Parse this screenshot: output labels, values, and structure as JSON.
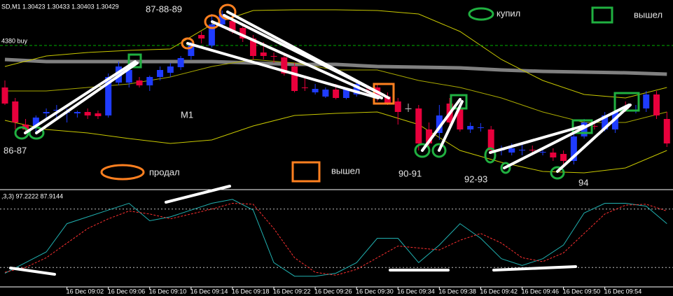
{
  "chart_data": [
    {
      "type": "candlestick",
      "title": "SD,M1  1.30423 1.30433 1.30403 1.30429",
      "categories": [
        null,
        null,
        null,
        null,
        null,
        null,
        "16 Dec 09:02",
        null,
        null,
        null,
        "16 Dec 09:06",
        null,
        null,
        null,
        "16 Dec 09:10",
        null,
        null,
        null,
        "16 Dec 09:14",
        null,
        null,
        null,
        "16 Dec 09:18",
        null,
        null,
        null,
        "16 Dec 09:22",
        null,
        null,
        null,
        "16 Dec 09:26",
        null,
        null,
        null,
        "16 Dec 09:30",
        null,
        null,
        null,
        "16 Dec 09:34",
        null,
        null,
        null,
        "16 Dec 09:38",
        null,
        null,
        null,
        "16 Dec 09:42",
        null,
        null,
        null,
        "16 Dec 09:46",
        null,
        null,
        null,
        "16 Dec 09:50",
        null,
        null,
        null,
        "16 Dec 09:54",
        null,
        null,
        null,
        null,
        null,
        null
      ],
      "open": [
        1.3032,
        1.303,
        1.30267,
        1.30265,
        1.30283,
        1.30287,
        1.30284,
        1.30283,
        1.30285,
        1.30283,
        1.3028,
        1.30327,
        1.30327,
        1.3033,
        1.30323,
        1.30335,
        1.30341,
        1.30349,
        1.30365,
        1.30395,
        1.3038,
        1.3041,
        1.30415,
        1.30405,
        1.3039,
        1.3037,
        1.30365,
        1.30363,
        1.3035,
        1.3032,
        1.30313,
        1.30307,
        1.30317,
        1.30305,
        1.3031,
        1.30317,
        1.3032,
        1.30307,
        1.303,
        1.3029,
        1.3029,
        1.3026,
        1.30255,
        1.30297,
        1.3029,
        1.3026,
        1.30262,
        1.3026,
        1.3023,
        1.30227,
        1.3023,
        1.30231,
        1.30227,
        1.30227,
        1.30225,
        1.30215,
        1.3025,
        1.30265,
        1.3026,
        1.3026,
        1.3029,
        1.30287,
        1.3029,
        1.3031,
        1.30275
      ],
      "high": [
        1.3033,
        1.30305,
        1.30275,
        1.3028,
        1.3029,
        1.30295,
        1.3029,
        1.30287,
        1.3029,
        1.30287,
        1.3034,
        1.30357,
        1.3035,
        1.30335,
        1.30337,
        1.3035,
        1.30355,
        1.30365,
        1.30385,
        1.304,
        1.30425,
        1.3043,
        1.3042,
        1.3041,
        1.30395,
        1.30385,
        1.3037,
        1.30367,
        1.30355,
        1.30335,
        1.30325,
        1.3032,
        1.30325,
        1.3032,
        1.3033,
        1.30323,
        1.30325,
        1.30313,
        1.30305,
        1.30297,
        1.30295,
        1.3027,
        1.30295,
        1.30305,
        1.30297,
        1.3027,
        1.30269,
        1.30265,
        1.30237,
        1.3024,
        1.3024,
        1.30237,
        1.30233,
        1.30233,
        1.3023,
        1.30255,
        1.30275,
        1.3027,
        1.30285,
        1.30295,
        1.303,
        1.30295,
        1.30315,
        1.30315,
        1.30285
      ],
      "low": [
        1.30295,
        1.3026,
        1.30253,
        1.30255,
        1.30275,
        1.30277,
        1.3027,
        1.30277,
        1.30275,
        1.30275,
        1.30277,
        1.30323,
        1.3032,
        1.3032,
        1.30315,
        1.3033,
        1.30335,
        1.30345,
        1.3036,
        1.30383,
        1.30377,
        1.30405,
        1.30397,
        1.30385,
        1.3036,
        1.3036,
        1.30355,
        1.30337,
        1.30313,
        1.30315,
        1.3031,
        1.30305,
        1.30303,
        1.30303,
        1.30307,
        1.3031,
        1.303,
        1.30295,
        1.30267,
        1.30285,
        1.3023,
        1.3023,
        1.30245,
        1.30265,
        1.30257,
        1.30255,
        1.30257,
        1.30225,
        1.30223,
        1.30223,
        1.30223,
        1.30225,
        1.30223,
        1.30215,
        1.3021,
        1.3021,
        1.30247,
        1.3026,
        1.30257,
        1.30255,
        1.30285,
        1.30283,
        1.30285,
        1.30275,
        1.30235
      ],
      "close": [
        1.30297,
        1.3027,
        1.3026,
        1.30277,
        1.30285,
        1.30288,
        1.30285,
        1.30285,
        1.3028,
        1.30279,
        1.30335,
        1.3035,
        1.30345,
        1.30323,
        1.30335,
        1.30345,
        1.3035,
        1.30362,
        1.3038,
        1.3039,
        1.3041,
        1.30425,
        1.304,
        1.3039,
        1.30365,
        1.30365,
        1.30364,
        1.3034,
        1.30315,
        1.30319,
        1.30318,
        1.30317,
        1.30305,
        1.30317,
        1.30325,
        1.30316,
        1.30305,
        1.30297,
        1.30285,
        1.3029,
        1.3024,
        1.3024,
        1.3028,
        1.3027,
        1.3026,
        1.30265,
        1.30263,
        1.3023,
        1.30231,
        1.30233,
        1.30231,
        1.3023,
        1.30228,
        1.3022,
        1.30215,
        1.3025,
        1.3027,
        1.30264,
        1.3028,
        1.30285,
        1.30289,
        1.30288,
        1.3031,
        1.3028,
        1.3024
      ],
      "up_color": "#1f3cff",
      "down_color": "#e8003c",
      "doji_color": "#c0c0c0",
      "ylim": [
        1.30175,
        1.30445
      ],
      "overlays": [
        {
          "color": "#808080",
          "thick": true,
          "x": [
            0,
            4,
            8,
            12,
            16,
            20,
            24,
            28,
            32,
            36,
            40,
            44,
            48,
            52,
            56,
            60,
            64
          ],
          "values": [
            1.3036,
            1.30357,
            1.30357,
            1.30357,
            1.30357,
            1.30357,
            1.30355,
            1.30353,
            1.30353,
            1.3035,
            1.30349,
            1.30348,
            1.30345,
            1.30343,
            1.30342,
            1.30341,
            1.30339
          ]
        },
        {
          "color": "#c8c800",
          "x": [
            0,
            4,
            8,
            12,
            16,
            20,
            24,
            28,
            32,
            36,
            40,
            44,
            48,
            52,
            56,
            60,
            64
          ],
          "values": [
            1.3035,
            1.30365,
            1.3037,
            1.30373,
            1.30375,
            1.3041,
            1.3043,
            1.30431,
            1.30431,
            1.3043,
            1.30425,
            1.304,
            1.3036,
            1.3033,
            1.3031,
            1.30305,
            1.3032
          ]
        },
        {
          "color": "#a8a800",
          "x": [
            0,
            4,
            8,
            12,
            16,
            20,
            24,
            28,
            32,
            36,
            40,
            44,
            48,
            52,
            56,
            60,
            64
          ],
          "values": [
            1.30315,
            1.30315,
            1.3032,
            1.30325,
            1.30335,
            1.3035,
            1.3036,
            1.30355,
            1.30345,
            1.30345,
            1.3033,
            1.3032,
            1.30305,
            1.30285,
            1.3027,
            1.3027,
            1.30285
          ]
        },
        {
          "color": "#c8c800",
          "x": [
            0,
            4,
            8,
            12,
            16,
            20,
            24,
            28,
            32,
            36,
            40,
            44,
            48,
            52,
            56,
            60,
            64
          ],
          "values": [
            1.30273,
            1.3026,
            1.30255,
            1.30247,
            1.3024,
            1.30245,
            1.30265,
            1.3028,
            1.30283,
            1.30285,
            1.30267,
            1.3023,
            1.30213,
            1.302,
            1.30198,
            1.30205,
            1.3023
          ]
        }
      ],
      "levels": [
        {
          "value": 1.3038,
          "label": "4380 buy",
          "color": "#00b000"
        }
      ]
    },
    {
      "type": "line",
      "title": ",3,3) 97.2222 87.9144",
      "x": [
        0,
        2,
        4,
        6,
        8,
        10,
        12,
        14,
        16,
        18,
        20,
        22,
        24,
        26,
        28,
        30,
        32,
        34,
        36,
        38,
        40,
        42,
        44,
        46,
        48,
        50,
        52,
        54,
        56,
        58,
        60,
        62,
        64
      ],
      "series": [
        {
          "color": "#20b0b0",
          "values": [
            14,
            25,
            36,
            65,
            72,
            79,
            86,
            68,
            72,
            79,
            86,
            90,
            79,
            25,
            11,
            11,
            14,
            25,
            50,
            50,
            25,
            43,
            65,
            50,
            29,
            22,
            29,
            43,
            76,
            86,
            86,
            83,
            65
          ]
        },
        {
          "color": "#ff3030",
          "dashed": true,
          "values": [
            15,
            20,
            30,
            45,
            60,
            70,
            78,
            75,
            70,
            75,
            80,
            86,
            85,
            60,
            30,
            15,
            12,
            18,
            30,
            42,
            40,
            38,
            48,
            55,
            45,
            30,
            26,
            35,
            55,
            75,
            84,
            85,
            78
          ]
        }
      ],
      "ylim": [
        0,
        100
      ],
      "levels": [
        80,
        20
      ]
    }
  ],
  "annotations": {
    "a1": "87-88-89",
    "a2": "купил",
    "a3": "вышел",
    "a4": "86-87",
    "a5": "M1",
    "a6": "продал",
    "a7": "вышел",
    "a8": "90-91",
    "a9": "92-93",
    "a10": "94"
  }
}
